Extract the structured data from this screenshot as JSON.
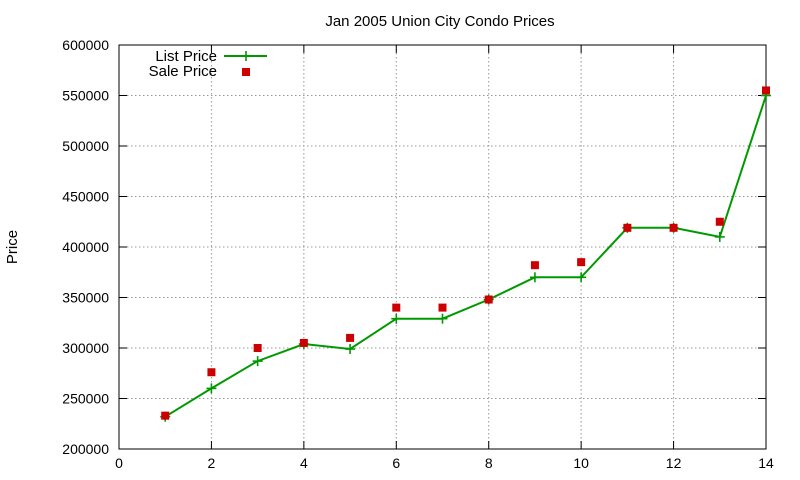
{
  "chart_data": {
    "type": "line",
    "title": "Jan 2005 Union City Condo Prices",
    "xlabel": "",
    "ylabel": "Price",
    "xlim": [
      0,
      14
    ],
    "ylim": [
      200000,
      600000
    ],
    "xticks": [
      0,
      2,
      4,
      6,
      8,
      10,
      12,
      14
    ],
    "yticks": [
      200000,
      250000,
      300000,
      350000,
      400000,
      450000,
      500000,
      550000,
      600000
    ],
    "grid": true,
    "legend_position": "top-left",
    "series": [
      {
        "name": "List Price",
        "style": "line-with-plus-markers",
        "color": "#009900",
        "x": [
          1,
          2,
          3,
          4,
          5,
          6,
          7,
          8,
          9,
          10,
          11,
          12,
          13,
          14
        ],
        "y": [
          232000,
          260000,
          287000,
          304000,
          299000,
          329000,
          329000,
          348000,
          370000,
          370000,
          419000,
          419000,
          410000,
          550000
        ]
      },
      {
        "name": "Sale Price",
        "style": "square-markers",
        "color": "#cc0000",
        "x": [
          1,
          2,
          3,
          4,
          5,
          6,
          7,
          8,
          9,
          10,
          11,
          12,
          13,
          14
        ],
        "y": [
          233000,
          276000,
          300000,
          305000,
          310000,
          340000,
          340000,
          348000,
          382000,
          385000,
          419000,
          419000,
          425000,
          555000
        ]
      }
    ]
  }
}
